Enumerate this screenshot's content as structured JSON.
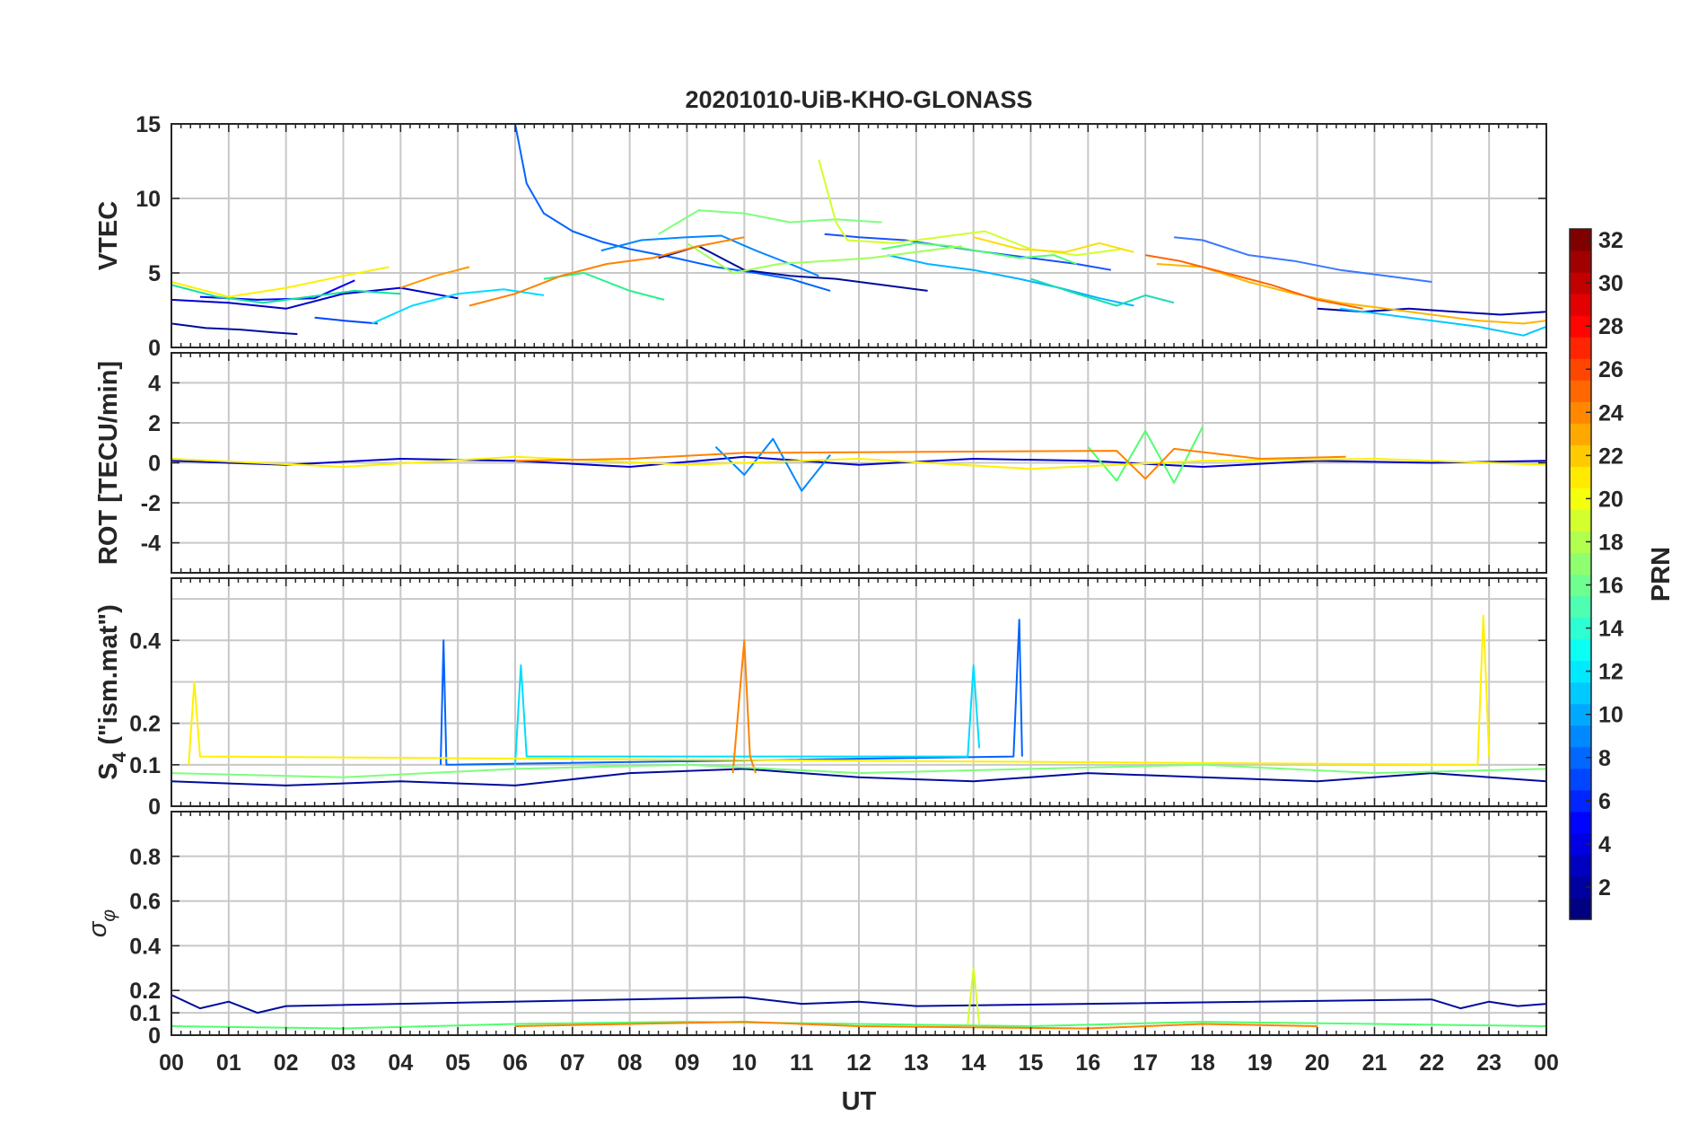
{
  "chart_data": {
    "type": "line",
    "title": "20201010-UiB-KHO-GLONASS",
    "xlabel": "UT",
    "xticks": [
      "00",
      "01",
      "02",
      "03",
      "04",
      "05",
      "06",
      "07",
      "08",
      "09",
      "10",
      "11",
      "12",
      "13",
      "14",
      "15",
      "16",
      "17",
      "18",
      "19",
      "20",
      "21",
      "22",
      "23",
      "00"
    ],
    "xlim": [
      0,
      24
    ],
    "grid": true,
    "colorbar": {
      "label": "PRN",
      "colormap": "jet",
      "range": [
        1,
        32
      ],
      "ticks": [
        "2",
        "4",
        "6",
        "8",
        "10",
        "12",
        "14",
        "16",
        "18",
        "20",
        "22",
        "24",
        "26",
        "28",
        "30",
        "32"
      ]
    },
    "panels": [
      {
        "id": "vtec",
        "ylabel": "VTEC",
        "ylim": [
          0,
          15
        ],
        "yticks": [
          "0",
          "5",
          "10",
          "15"
        ],
        "series": [
          {
            "prn": 1,
            "color": "#000c9c",
            "x": [
              0.0,
              0.6,
              1.2,
              1.8,
              2.2
            ],
            "y": [
              1.6,
              1.3,
              1.2,
              1.0,
              0.9
            ]
          },
          {
            "prn": 2,
            "color": "#0000cc",
            "x": [
              0.0,
              1.0,
              2.0,
              3.0,
              4.0,
              5.0
            ],
            "y": [
              3.2,
              3.0,
              2.6,
              3.6,
              4.0,
              3.3
            ]
          },
          {
            "prn": 3,
            "color": "#0000ff",
            "x": [
              0.5,
              1.5,
              2.5,
              3.2
            ],
            "y": [
              3.4,
              3.2,
              3.3,
              4.5
            ]
          },
          {
            "prn": 4,
            "color": "#0044ff",
            "x": [
              2.5,
              3.0,
              3.6
            ],
            "y": [
              2.0,
              1.8,
              1.6
            ]
          },
          {
            "prn": 5,
            "color": "#0064ff",
            "x": [
              6.0,
              6.2,
              6.5,
              7.0,
              7.5,
              8.0,
              8.8,
              9.5,
              10.2,
              10.8,
              11.5
            ],
            "y": [
              15.0,
              11.0,
              9.0,
              7.8,
              7.1,
              6.6,
              6.0,
              5.4,
              5.0,
              4.6,
              3.8
            ]
          },
          {
            "prn": 6,
            "color": "#0088ff",
            "x": [
              7.5,
              8.2,
              9.0,
              9.6,
              10.2,
              10.8,
              11.3
            ],
            "y": [
              6.5,
              7.2,
              7.4,
              7.5,
              6.5,
              5.6,
              4.8
            ]
          },
          {
            "prn": 7,
            "color": "#000c9c",
            "x": [
              8.5,
              9.2,
              10.0,
              10.8,
              11.6,
              12.4,
              13.2
            ],
            "y": [
              6.0,
              6.8,
              5.2,
              4.8,
              4.6,
              4.2,
              3.8
            ]
          },
          {
            "prn": 8,
            "color": "#1a50ff",
            "x": [
              11.4,
              12.0,
              12.8,
              13.5,
              14.2,
              15.0,
              15.8,
              16.4
            ],
            "y": [
              7.6,
              7.4,
              7.2,
              6.8,
              6.4,
              6.0,
              5.6,
              5.2
            ]
          },
          {
            "prn": 9,
            "color": "#00b4ff",
            "x": [
              12.5,
              13.2,
              14.0,
              14.8,
              15.5,
              16.2,
              16.8
            ],
            "y": [
              6.2,
              5.6,
              5.2,
              4.6,
              4.0,
              3.3,
              2.8
            ]
          },
          {
            "prn": 10,
            "color": "#3a78ff",
            "x": [
              17.5,
              18.0,
              18.8,
              19.6,
              20.4,
              21.2,
              22.0
            ],
            "y": [
              7.4,
              7.2,
              6.2,
              5.8,
              5.2,
              4.8,
              4.4
            ]
          },
          {
            "prn": 11,
            "color": "#0000aa",
            "x": [
              20.0,
              20.8,
              21.6,
              22.4,
              23.2,
              24.0
            ],
            "y": [
              2.6,
              2.4,
              2.6,
              2.4,
              2.2,
              2.4
            ]
          },
          {
            "prn": 12,
            "color": "#00dcff",
            "x": [
              3.5,
              4.2,
              5.0,
              5.8,
              6.5
            ],
            "y": [
              1.6,
              2.8,
              3.6,
              3.9,
              3.5
            ]
          },
          {
            "prn": 13,
            "color": "#1adcb4",
            "x": [
              15.0,
              15.8,
              16.5,
              17.0,
              17.5
            ],
            "y": [
              4.6,
              3.6,
              2.8,
              3.5,
              3.0
            ]
          },
          {
            "prn": 14,
            "color": "#14e09c",
            "x": [
              0.0,
              0.8,
              1.6,
              2.4,
              3.2,
              4.0
            ],
            "y": [
              4.2,
              3.4,
              3.0,
              3.4,
              3.8,
              3.6
            ]
          },
          {
            "prn": 15,
            "color": "#28f08c",
            "x": [
              6.5,
              7.2,
              8.0,
              8.6
            ],
            "y": [
              4.6,
              5.0,
              3.8,
              3.2
            ]
          },
          {
            "prn": 16,
            "color": "#50ff6e",
            "x": [
              12.4,
              13.0,
              13.6,
              14.2,
              14.8,
              15.4,
              15.8
            ],
            "y": [
              6.6,
              7.0,
              6.8,
              6.4,
              6.0,
              6.2,
              5.6
            ]
          },
          {
            "prn": 17,
            "color": "#7cff7c",
            "x": [
              8.5,
              9.2,
              10.0,
              10.8,
              11.6,
              12.4
            ],
            "y": [
              7.6,
              9.2,
              9.0,
              8.4,
              8.6,
              8.4
            ]
          },
          {
            "prn": 18,
            "color": "#a0ff5a",
            "x": [
              9.0,
              9.8,
              10.6,
              11.4,
              12.2,
              13.0,
              13.8
            ],
            "y": [
              7.0,
              5.0,
              5.6,
              5.8,
              6.0,
              6.4,
              6.8
            ]
          },
          {
            "prn": 19,
            "color": "#d2ff2a",
            "x": [
              11.3,
              11.6,
              11.8,
              12.6,
              13.4,
              14.2,
              15.0,
              15.8,
              16.6
            ],
            "y": [
              12.6,
              8.4,
              7.2,
              7.0,
              7.4,
              7.8,
              6.6,
              6.2,
              6.6
            ]
          },
          {
            "prn": 20,
            "color": "#fff000",
            "x": [
              0.0,
              1.0,
              2.0,
              3.0,
              3.8
            ],
            "y": [
              4.4,
              3.4,
              4.0,
              4.8,
              5.4
            ]
          },
          {
            "prn": 21,
            "color": "#ffdc00",
            "x": [
              14.0,
              14.8,
              15.6,
              16.2,
              16.8
            ],
            "y": [
              7.4,
              6.6,
              6.4,
              7.0,
              6.4
            ]
          },
          {
            "prn": 22,
            "color": "#ffb400",
            "x": [
              17.2,
              18.0,
              18.8,
              19.6,
              20.4,
              21.2,
              22.0,
              22.8,
              23.6,
              24.0
            ],
            "y": [
              5.6,
              5.4,
              4.4,
              3.6,
              3.0,
              2.6,
              2.2,
              1.8,
              1.6,
              1.8
            ]
          },
          {
            "prn": 23,
            "color": "#ff9600",
            "x": [
              4.0,
              4.6,
              5.2
            ],
            "y": [
              4.0,
              4.8,
              5.4
            ]
          },
          {
            "prn": 24,
            "color": "#ff8200",
            "x": [
              5.2,
              6.0,
              6.8,
              7.6,
              8.4,
              9.2,
              10.0
            ],
            "y": [
              2.8,
              3.6,
              4.8,
              5.6,
              6.0,
              6.8,
              7.4
            ]
          },
          {
            "prn": 25,
            "color": "#ff6400",
            "x": [
              17.0,
              17.6,
              18.4,
              19.2,
              20.0,
              20.8
            ],
            "y": [
              6.2,
              5.8,
              5.0,
              4.2,
              3.2,
              2.6
            ]
          },
          {
            "prn": 26,
            "color": "#00c8ff",
            "x": [
              20.4,
              21.2,
              22.0,
              22.8,
              23.6,
              24.0
            ],
            "y": [
              2.6,
              2.2,
              1.8,
              1.4,
              0.8,
              1.4
            ]
          }
        ]
      },
      {
        "id": "rot",
        "ylabel": "ROT [TECU/min]",
        "ylim": [
          -5.5,
          5.5
        ],
        "yticks": [
          "-4",
          "-2",
          "0",
          "2",
          "4"
        ],
        "series": [
          {
            "prn": 2,
            "color": "#0000cc",
            "x": [
              0,
              2,
              4,
              6,
              8,
              10,
              12,
              14,
              16,
              18,
              20,
              22,
              24
            ],
            "y": [
              0.1,
              -0.1,
              0.2,
              0.1,
              -0.2,
              0.3,
              -0.1,
              0.2,
              0.1,
              -0.2,
              0.1,
              0.0,
              0.1
            ]
          },
          {
            "prn": 8,
            "color": "#0088ff",
            "x": [
              9.5,
              10.0,
              10.5,
              11.0,
              11.5
            ],
            "y": [
              0.8,
              -0.6,
              1.2,
              -1.4,
              0.4
            ]
          },
          {
            "prn": 16,
            "color": "#50ff6e",
            "x": [
              16.0,
              16.5,
              17.0,
              17.5,
              18.0
            ],
            "y": [
              0.8,
              -0.9,
              1.6,
              -1.0,
              1.8
            ]
          },
          {
            "prn": 20,
            "color": "#fff000",
            "x": [
              0,
              3,
              6,
              9,
              12,
              15,
              18,
              21,
              24
            ],
            "y": [
              0.2,
              -0.2,
              0.3,
              -0.1,
              0.2,
              -0.3,
              0.1,
              0.2,
              -0.1
            ]
          },
          {
            "prn": 24,
            "color": "#ff8200",
            "x": [
              6.0,
              8.0,
              10.0,
              16.5,
              17.0,
              17.5,
              19.0,
              20.5
            ],
            "y": [
              0.1,
              0.2,
              0.5,
              0.6,
              -0.8,
              0.7,
              0.2,
              0.3
            ]
          }
        ]
      },
      {
        "id": "s4",
        "ylabel": "S4 (\"ism.mat\")",
        "ylabel_main": "S",
        "ylabel_sub": "4",
        "ylabel_rest": " (\"ism.mat\")",
        "ylim": [
          0,
          0.55
        ],
        "yticks": [
          "0",
          "0.1",
          "0.2",
          "0.4"
        ],
        "series": [
          {
            "prn": 1,
            "color": "#000c9c",
            "x": [
              0,
              2,
              4,
              6,
              8,
              10,
              12,
              14,
              16,
              18,
              20,
              22,
              24
            ],
            "y": [
              0.06,
              0.05,
              0.06,
              0.05,
              0.08,
              0.09,
              0.07,
              0.06,
              0.08,
              0.07,
              0.06,
              0.08,
              0.06
            ]
          },
          {
            "prn": 5,
            "color": "#0064ff",
            "x": [
              4.7,
              4.75,
              4.8,
              14.7,
              14.8,
              14.85
            ],
            "y": [
              0.1,
              0.4,
              0.1,
              0.12,
              0.45,
              0.12
            ]
          },
          {
            "prn": 12,
            "color": "#00dcff",
            "x": [
              6.0,
              6.1,
              6.2,
              13.9,
              14.0,
              14.1
            ],
            "y": [
              0.1,
              0.34,
              0.12,
              0.12,
              0.34,
              0.14
            ]
          },
          {
            "prn": 20,
            "color": "#fff000",
            "x": [
              0.3,
              0.4,
              0.5,
              22.8,
              22.9,
              23.0
            ],
            "y": [
              0.1,
              0.3,
              0.12,
              0.1,
              0.46,
              0.12
            ]
          },
          {
            "prn": 24,
            "color": "#ff8200",
            "x": [
              9.8,
              10.0,
              10.1,
              10.2
            ],
            "y": [
              0.08,
              0.4,
              0.12,
              0.08
            ]
          },
          {
            "prn": 17,
            "color": "#7cff7c",
            "x": [
              0,
              3,
              6,
              9,
              12,
              15,
              18,
              21,
              24
            ],
            "y": [
              0.08,
              0.07,
              0.09,
              0.1,
              0.08,
              0.09,
              0.1,
              0.08,
              0.09
            ]
          }
        ]
      },
      {
        "id": "sigma",
        "ylabel": "σ φ",
        "ylabel_main": "σ",
        "ylabel_sub": "φ",
        "ylim": [
          0,
          1.0
        ],
        "yticks": [
          "0",
          "0.1",
          "0.2",
          "0.4",
          "0.6",
          "0.8"
        ],
        "series": [
          {
            "prn": 1,
            "color": "#000c9c",
            "x": [
              0.0,
              0.5,
              1.0,
              1.5,
              2.0,
              10.0,
              11.0,
              12.0,
              13.0,
              22.0,
              22.5,
              23.0,
              23.5,
              24.0
            ],
            "y": [
              0.18,
              0.12,
              0.15,
              0.1,
              0.13,
              0.17,
              0.14,
              0.15,
              0.13,
              0.16,
              0.12,
              0.15,
              0.13,
              0.14
            ]
          },
          {
            "prn": 19,
            "color": "#d2ff2a",
            "x": [
              13.9,
              14.0,
              14.1
            ],
            "y": [
              0.05,
              0.3,
              0.05
            ]
          },
          {
            "prn": 16,
            "color": "#50ff6e",
            "x": [
              0,
              3,
              6,
              9,
              12,
              15,
              18,
              21,
              24
            ],
            "y": [
              0.04,
              0.03,
              0.05,
              0.06,
              0.05,
              0.04,
              0.06,
              0.05,
              0.04
            ]
          },
          {
            "prn": 24,
            "color": "#ff8200",
            "x": [
              6,
              8,
              10,
              12,
              16,
              18,
              20
            ],
            "y": [
              0.04,
              0.05,
              0.06,
              0.04,
              0.03,
              0.05,
              0.04
            ]
          }
        ]
      }
    ]
  }
}
